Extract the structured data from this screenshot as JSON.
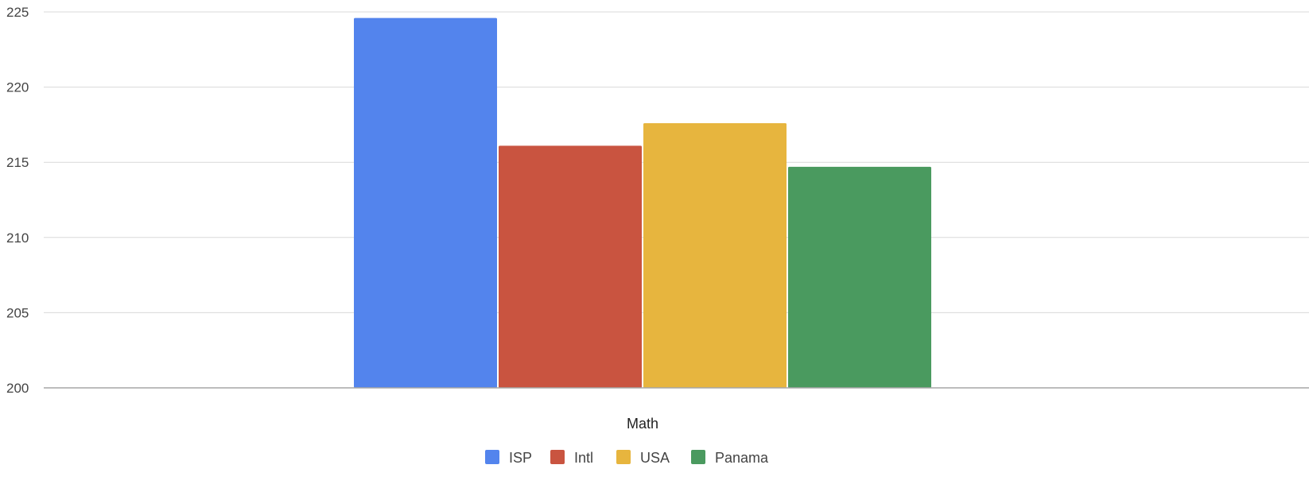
{
  "chart_data": {
    "type": "bar",
    "categories": [
      "Math"
    ],
    "series": [
      {
        "name": "ISP",
        "values": [
          224.6
        ],
        "color": "#5384ed"
      },
      {
        "name": "Intl",
        "values": [
          216.1
        ],
        "color": "#c95440"
      },
      {
        "name": "USA",
        "values": [
          217.6
        ],
        "color": "#e7b53e"
      },
      {
        "name": "Panama",
        "values": [
          214.7
        ],
        "color": "#4a9a5f"
      }
    ],
    "ylim": [
      200,
      225
    ],
    "yticks": [
      "200",
      "205",
      "210",
      "215",
      "220",
      "225"
    ],
    "title": "",
    "xlabel": "",
    "ylabel": "",
    "grid": true,
    "legend_position": "bottom"
  }
}
